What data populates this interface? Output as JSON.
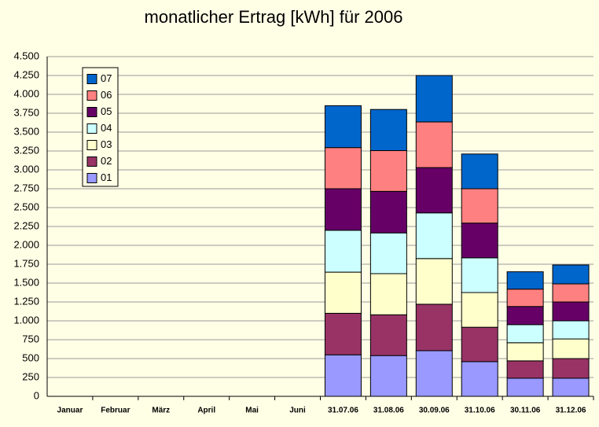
{
  "chart_data": {
    "type": "stacked_bar",
    "title": "monatlicher Ertrag [kWh] für 2006",
    "categories": [
      "Januar",
      "Februar",
      "März",
      "April",
      "Mai",
      "Juni",
      "31.07.06",
      "31.08.06",
      "30.09.06",
      "31.10.06",
      "30.11.06",
      "31.12.06"
    ],
    "series": [
      {
        "name": "01",
        "color": "#9999ff",
        "values": [
          null,
          null,
          null,
          null,
          null,
          null,
          550,
          540,
          605,
          460,
          240,
          240
        ]
      },
      {
        "name": "02",
        "color": "#993366",
        "values": [
          null,
          null,
          null,
          null,
          null,
          null,
          550,
          540,
          615,
          455,
          230,
          260
        ]
      },
      {
        "name": "03",
        "color": "#ffffcc",
        "values": [
          null,
          null,
          null,
          null,
          null,
          null,
          545,
          545,
          605,
          460,
          240,
          260
        ]
      },
      {
        "name": "04",
        "color": "#ccffff",
        "values": [
          null,
          null,
          null,
          null,
          null,
          null,
          555,
          540,
          605,
          460,
          240,
          240
        ]
      },
      {
        "name": "05",
        "color": "#660066",
        "values": [
          null,
          null,
          null,
          null,
          null,
          null,
          550,
          550,
          600,
          460,
          240,
          250
        ]
      },
      {
        "name": "06",
        "color": "#ff8080",
        "values": [
          null,
          null,
          null,
          null,
          null,
          null,
          545,
          540,
          605,
          455,
          230,
          240
        ]
      },
      {
        "name": "07",
        "color": "#0066cc",
        "values": [
          null,
          null,
          null,
          null,
          null,
          null,
          555,
          545,
          615,
          460,
          230,
          250
        ]
      }
    ],
    "ylim": [
      0,
      4500
    ],
    "yticks": [
      0,
      250,
      500,
      750,
      {
        "value": 1000,
        "label": "1.000"
      },
      {
        "value": 1250,
        "label": "1.250"
      },
      {
        "value": 1500,
        "label": "1.500"
      },
      {
        "value": 1750,
        "label": "1.750"
      },
      {
        "value": 2000,
        "label": "2.000"
      },
      {
        "value": 2250,
        "label": "2.250"
      },
      {
        "value": 2500,
        "label": "2.500"
      },
      {
        "value": 2750,
        "label": "2.750"
      },
      {
        "value": 3000,
        "label": "3.000"
      },
      {
        "value": 3250,
        "label": "3.250"
      },
      {
        "value": 3500,
        "label": "3.500"
      },
      {
        "value": 3750,
        "label": "3.750"
      },
      {
        "value": 4000,
        "label": "4.000"
      },
      {
        "value": 4250,
        "label": "4.250"
      },
      {
        "value": 4500,
        "label": "4.500"
      }
    ],
    "grid": true,
    "legend": "upper left"
  }
}
